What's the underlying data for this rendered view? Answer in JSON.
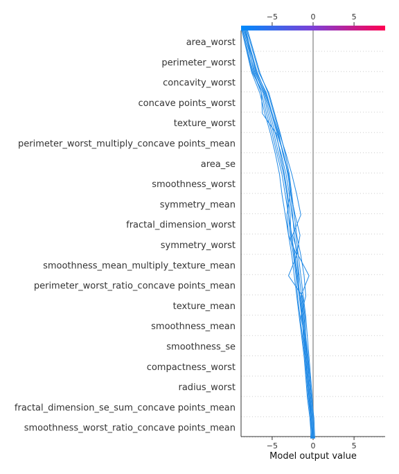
{
  "chart_data": {
    "type": "line",
    "title": "",
    "xlabel": "Model output value",
    "ylabel": "",
    "xlim": [
      -8.8,
      8.8
    ],
    "base_value": 0,
    "x_ticks": [
      -5,
      0,
      5
    ],
    "x_tick_labels": [
      "−5",
      "0",
      "5"
    ],
    "grid": "horizontal dotted",
    "colorbar": {
      "low_color": "#008bfb",
      "mid_color": "#7d3fd6",
      "high_color": "#ff0051"
    },
    "series_color": "#1e88e5",
    "features": [
      "area_worst",
      "perimeter_worst",
      "concavity_worst",
      "concave points_worst",
      "texture_worst",
      "perimeter_worst_multiply_concave points_mean",
      "area_se",
      "smoothness_worst",
      "symmetry_mean",
      "fractal_dimension_worst",
      "symmetry_worst",
      "smoothness_mean_multiply_texture_mean",
      "perimeter_worst_ratio_concave points_mean",
      "texture_mean",
      "smoothness_mean",
      "smoothness_se",
      "compactness_worst",
      "radius_worst",
      "fractal_dimension_se_sum_concave points_mean",
      "smoothness_worst_ratio_concave points_mean"
    ],
    "series": [
      {
        "values": [
          -0.2,
          0.1,
          0.0,
          -0.1,
          -0.3,
          -0.5,
          -0.7,
          -0.9,
          -1.2,
          -1.5,
          -1.8,
          -2.1,
          -2.6,
          -2.9,
          -3.3,
          -3.9,
          -4.6,
          -5.3,
          -6.0,
          -7.1,
          -8.5
        ]
      },
      {
        "values": [
          0.0,
          0.2,
          0.1,
          -0.2,
          -0.4,
          -0.6,
          -0.9,
          -1.1,
          -1.4,
          -1.7,
          -2.0,
          -1.6,
          -2.2,
          -2.7,
          -3.0,
          -3.6,
          -4.3,
          -5.0,
          -5.8,
          -6.8,
          -8.3
        ]
      },
      {
        "values": [
          -0.3,
          0.0,
          -0.1,
          -0.4,
          -0.6,
          -0.8,
          -1.0,
          -1.2,
          -1.5,
          -0.5,
          -1.8,
          -2.5,
          -1.5,
          -2.0,
          -2.6,
          -3.3,
          -4.1,
          -4.8,
          -5.5,
          -6.5,
          -8.0
        ]
      },
      {
        "values": [
          0.1,
          0.0,
          -0.3,
          -0.5,
          -0.7,
          -0.9,
          -1.2,
          -1.3,
          -1.6,
          -1.9,
          -2.2,
          -2.7,
          -2.8,
          -3.1,
          -3.5,
          -4.0,
          -4.5,
          -6.2,
          -6.3,
          -7.3,
          -8.6
        ]
      },
      {
        "values": [
          -0.1,
          -0.2,
          -0.3,
          -0.6,
          -0.8,
          -1.0,
          -1.1,
          -1.4,
          -1.7,
          -1.8,
          -2.0,
          -3.0,
          -3.2,
          -2.8,
          -3.0,
          -3.7,
          -4.2,
          -5.0,
          -5.7,
          -6.9,
          -8.4
        ]
      },
      {
        "values": [
          0.2,
          0.1,
          -0.1,
          -0.3,
          -0.5,
          -0.7,
          -1.0,
          -1.5,
          -0.9,
          -1.1,
          -1.5,
          -2.0,
          -2.3,
          -2.6,
          -2.9,
          -3.4,
          -4.0,
          -4.7,
          -5.4,
          -6.6,
          -8.1
        ]
      },
      {
        "values": [
          -0.2,
          -0.1,
          -0.2,
          -0.5,
          -0.7,
          -1.0,
          -1.3,
          -1.6,
          -1.9,
          -2.1,
          -2.4,
          -2.8,
          -3.0,
          -3.2,
          -3.6,
          -4.2,
          -4.8,
          -5.5,
          -6.1,
          -7.4,
          -8.7
        ]
      },
      {
        "values": [
          0.1,
          -0.1,
          0.0,
          -0.2,
          -0.4,
          -0.7,
          -0.9,
          -1.0,
          -1.3,
          -3.0,
          -2.0,
          -2.3,
          -2.5,
          -2.7,
          -3.1,
          -3.6,
          -4.4,
          -5.1,
          -5.9,
          -7.0,
          -8.2
        ]
      },
      {
        "values": [
          -0.1,
          -0.3,
          -0.2,
          -0.4,
          -0.6,
          -0.8,
          -1.1,
          -1.3,
          -1.7,
          -2.0,
          -2.3,
          -2.6,
          -3.0,
          -3.4,
          -3.8,
          -4.4,
          -5.0,
          -5.7,
          -6.3,
          -7.2,
          -8.3
        ]
      },
      {
        "values": [
          0.0,
          -0.2,
          -0.4,
          -0.7,
          -0.9,
          -1.1,
          -1.4,
          -1.7,
          -2.0,
          -2.3,
          -2.6,
          -3.0,
          -3.4,
          -3.8,
          -4.1,
          -4.6,
          -5.2,
          -5.9,
          -6.5,
          -7.5,
          -8.7
        ]
      }
    ]
  }
}
